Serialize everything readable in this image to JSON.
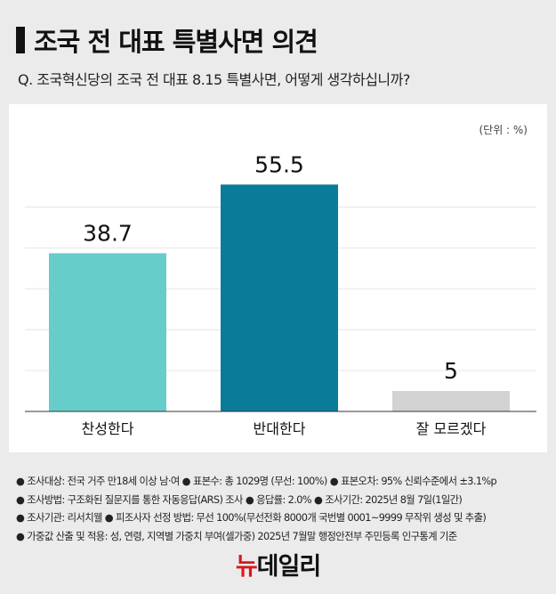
{
  "title": "조국 전 대표 특별사면 의견",
  "question": "Q. 조국혁신당의 조국 전 대표 8.15 특별사면, 어떻게 생각하십니까?",
  "chart_data": {
    "type": "bar",
    "unit_label": "(단위 : %)",
    "categories": [
      "찬성한다",
      "반대한다",
      "잘 모르겠다"
    ],
    "values": [
      38.7,
      55.5,
      5
    ],
    "data_labels": [
      "38.7",
      "55.5",
      "5"
    ],
    "colors": [
      "#66cdcb",
      "#0a7b99",
      "#d2d2d2"
    ],
    "ylim": [
      0,
      60
    ],
    "gridlines": [
      10,
      20,
      30,
      40,
      50
    ],
    "grid": true
  },
  "notes": [
    "● 조사대상: 전국 거주 만18세 이상 남·여 ● 표본수: 총 1029명 (무선: 100%) ● 표본오차: 95% 신뢰수준에서 ±3.1%p",
    "● 조사방법: 구조화된 질문지를 통한 자동응답(ARS) 조사 ● 응답률: 2.0% ● 조사기간: 2025년 8월 7일(1일간)",
    "● 조사기관: 리서치웰 ● 피조사자 선정 방법: 무선 100%(무선전화 8000개 국번별 0001~9999 무작위 생성 및 추출)",
    "● 가중값 산출 및 적용: 성, 연령, 지역별 가중치 부여(셀가중) 2025년 7월말 행정안전부 주민등록 인구통계 기준"
  ],
  "logo": {
    "part1": "뉴",
    "part2": "데일리",
    "text": "뉴데일리"
  }
}
